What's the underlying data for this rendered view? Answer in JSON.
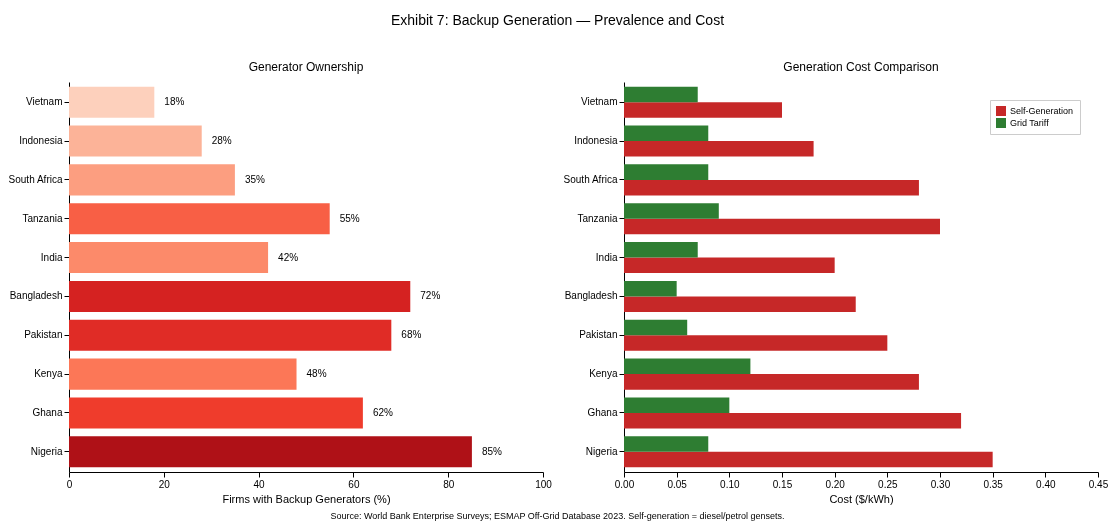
{
  "chart_data": [
    {
      "type": "bar",
      "orientation": "horizontal",
      "title": "Generator Ownership",
      "xlabel": "Firms with Backup Generators (%)",
      "categories": [
        "Vietnam",
        "Indonesia",
        "South Africa",
        "Tanzania",
        "India",
        "Bangladesh",
        "Pakistan",
        "Kenya",
        "Ghana",
        "Nigeria"
      ],
      "values": [
        18,
        28,
        35,
        55,
        42,
        72,
        68,
        48,
        62,
        85
      ],
      "colors": [
        "#fdd0bc",
        "#fcb398",
        "#fc9e80",
        "#f85f45",
        "#fc8a6a",
        "#d52221",
        "#e02c26",
        "#fc7757",
        "#ef3c2c",
        "#af1117"
      ],
      "value_labels": [
        "18%",
        "28%",
        "35%",
        "55%",
        "42%",
        "72%",
        "68%",
        "48%",
        "62%",
        "85%"
      ],
      "xlim": [
        0,
        100
      ],
      "xticks": [
        0,
        20,
        40,
        60,
        80,
        100
      ],
      "grid": false
    },
    {
      "type": "bar",
      "orientation": "horizontal",
      "title": "Generation Cost Comparison",
      "xlabel": "Cost ($/kWh)",
      "categories": [
        "Vietnam",
        "Indonesia",
        "South Africa",
        "Tanzania",
        "India",
        "Bangladesh",
        "Pakistan",
        "Kenya",
        "Ghana",
        "Nigeria"
      ],
      "series": [
        {
          "name": "Self-Generation",
          "color": "#c62828",
          "values": [
            0.15,
            0.18,
            0.28,
            0.3,
            0.2,
            0.22,
            0.25,
            0.28,
            0.32,
            0.35
          ]
        },
        {
          "name": "Grid Tariff",
          "color": "#2e7d32",
          "values": [
            0.07,
            0.08,
            0.08,
            0.09,
            0.07,
            0.05,
            0.06,
            0.12,
            0.1,
            0.08
          ]
        }
      ],
      "xlim": [
        0,
        0.45
      ],
      "xticks": [
        {
          "value": 0,
          "label": "0.00"
        },
        {
          "value": 0.05,
          "label": "0.05"
        },
        {
          "value": 0.1,
          "label": "0.10"
        },
        {
          "value": 0.15,
          "label": "0.15"
        },
        {
          "value": 0.2,
          "label": "0.20"
        },
        {
          "value": 0.25,
          "label": "0.25"
        },
        {
          "value": 0.3,
          "label": "0.30"
        },
        {
          "value": 0.35,
          "label": "0.35"
        },
        {
          "value": 0.4,
          "label": "0.40"
        },
        {
          "value": 0.45,
          "label": "0.45"
        }
      ],
      "grid": false,
      "legend": "top right"
    },
    {
      "type": "other",
      "title": "Exhibit 7: Backup Generation — Prevalence and Cost",
      "annotations": [
        "Source: World Bank Enterprise Surveys; ESMAP Off-Grid Database 2023. Self-generation = diesel/petrol gensets."
      ]
    }
  ]
}
